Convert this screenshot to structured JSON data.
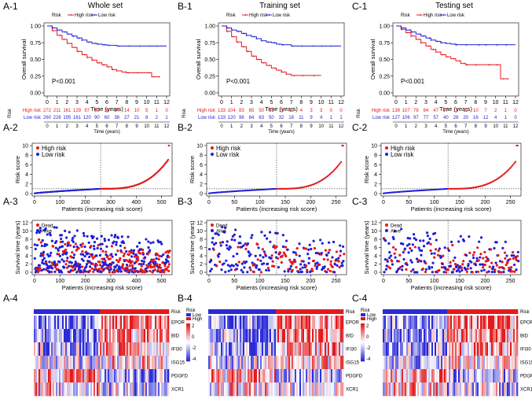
{
  "panel_labels": {
    "km": [
      "A-1",
      "B-1",
      "C-1"
    ],
    "riskscore": [
      "A-2",
      "B-2",
      "C-2"
    ],
    "survtime": [
      "A-3",
      "B-3",
      "C-3"
    ],
    "heatmap": [
      "A-4",
      "B-4",
      "C-4"
    ]
  },
  "column_titles": [
    "Whole set",
    "Training set",
    "Testing set"
  ],
  "colors": {
    "high": "#e41a1c",
    "low": "#1f1fd6",
    "heat_high": "#e41a1c",
    "heat_low": "#2a2ad8"
  },
  "chart_data": [
    {
      "type": "line",
      "panel": "A-1",
      "legend_title": "Risk",
      "legend": [
        "High risk",
        "Low risk"
      ],
      "xlabel": "Time (years)",
      "ylabel": "Overall survival",
      "xlim": [
        0,
        12
      ],
      "ylim": [
        0,
        1
      ],
      "xticks": [
        "0",
        "1",
        "2",
        "3",
        "4",
        "5",
        "6",
        "7",
        "8",
        "9",
        "10",
        "11",
        "12"
      ],
      "yticks": [
        "0.00",
        "0.25",
        "0.50",
        "0.75",
        "1.00"
      ],
      "annotation": "P<0.001",
      "series": [
        {
          "name": "High risk",
          "x": [
            0,
            0.5,
            1,
            1.5,
            2,
            2.5,
            3,
            3.5,
            4,
            4.5,
            5,
            5.5,
            6,
            6.5,
            7,
            7.5,
            8,
            9,
            10,
            10.5,
            11,
            11.3
          ],
          "y": [
            1.0,
            0.93,
            0.86,
            0.8,
            0.74,
            0.68,
            0.62,
            0.57,
            0.53,
            0.49,
            0.45,
            0.42,
            0.39,
            0.35,
            0.33,
            0.31,
            0.3,
            0.3,
            0.3,
            0.24,
            0.24,
            0.24
          ]
        },
        {
          "name": "Low risk",
          "x": [
            0,
            0.5,
            1,
            1.5,
            2,
            2.5,
            3,
            3.5,
            4,
            4.5,
            5,
            5.5,
            6,
            7,
            8,
            9,
            10,
            11,
            12
          ],
          "y": [
            1.0,
            0.97,
            0.94,
            0.91,
            0.88,
            0.85,
            0.82,
            0.79,
            0.76,
            0.74,
            0.73,
            0.72,
            0.71,
            0.7,
            0.7,
            0.7,
            0.7,
            0.7,
            0.7
          ]
        }
      ],
      "risk_table": {
        "title": "Risk",
        "times": [
          "0",
          "1",
          "2",
          "3",
          "4",
          "5",
          "6",
          "7",
          "8",
          "9",
          "10",
          "11",
          "12"
        ],
        "xlabel": "Time (years)",
        "rows": [
          {
            "name": "High risk",
            "values": [
              "272",
              "211",
              "161",
              "129",
              "97",
              "59",
              "38",
              "24",
              "14",
              "10",
              "5",
              "1",
              "0"
            ]
          },
          {
            "name": "Low risk",
            "values": [
              "260",
              "226",
              "195",
              "161",
              "120",
              "90",
              "60",
              "38",
              "27",
              "21",
              "8",
              "2",
              "1"
            ]
          }
        ]
      }
    },
    {
      "type": "line",
      "panel": "B-1",
      "legend_title": "Risk",
      "legend": [
        "High risk",
        "Low risk"
      ],
      "xlabel": "Time (years)",
      "ylabel": "Overall survival",
      "xlim": [
        0,
        12
      ],
      "ylim": [
        0,
        1
      ],
      "xticks": [
        "0",
        "1",
        "2",
        "3",
        "4",
        "5",
        "6",
        "7",
        "8",
        "9",
        "10",
        "11",
        "12"
      ],
      "yticks": [
        "0.00",
        "0.25",
        "0.50",
        "0.75",
        "1.00"
      ],
      "annotation": "P<0.001",
      "series": [
        {
          "name": "High risk",
          "x": [
            0,
            0.5,
            1,
            1.5,
            2,
            2.5,
            3,
            3.5,
            4,
            4.5,
            5,
            5.5,
            6,
            6.5,
            7,
            8,
            9,
            10
          ],
          "y": [
            1.0,
            0.92,
            0.84,
            0.76,
            0.69,
            0.62,
            0.55,
            0.5,
            0.45,
            0.41,
            0.37,
            0.34,
            0.31,
            0.28,
            0.26,
            0.26,
            0.26,
            0.26
          ]
        },
        {
          "name": "Low risk",
          "x": [
            0,
            0.5,
            1,
            1.5,
            2,
            2.5,
            3,
            3.5,
            4,
            4.5,
            5,
            5.5,
            6,
            7,
            8,
            9,
            10,
            11,
            12
          ],
          "y": [
            1.0,
            0.97,
            0.94,
            0.92,
            0.89,
            0.86,
            0.84,
            0.81,
            0.78,
            0.76,
            0.75,
            0.73,
            0.72,
            0.7,
            0.7,
            0.7,
            0.7,
            0.7,
            0.7
          ]
        }
      ],
      "risk_table": {
        "title": "Risk",
        "times": [
          "0",
          "1",
          "2",
          "3",
          "4",
          "5",
          "6",
          "7",
          "8",
          "9",
          "10",
          "11",
          "12"
        ],
        "xlabel": "Time (years)",
        "rows": [
          {
            "name": "High risk",
            "values": [
              "133",
              "104",
              "83",
              "65",
              "50",
              "32",
              "19",
              "12",
              "4",
              "3",
              "3",
              "0",
              "0"
            ]
          },
          {
            "name": "Low risk",
            "values": [
              "133",
              "120",
              "98",
              "84",
              "63",
              "50",
              "32",
              "18",
              "11",
              "9",
              "4",
              "1",
              "1"
            ]
          }
        ]
      }
    },
    {
      "type": "line",
      "panel": "C-1",
      "legend_title": "Risk",
      "legend": [
        "High risk",
        "Low risk"
      ],
      "xlabel": "Time (years)",
      "ylabel": "Overall survival",
      "xlim": [
        0,
        12
      ],
      "ylim": [
        0,
        1
      ],
      "xticks": [
        "0",
        "1",
        "2",
        "3",
        "4",
        "5",
        "6",
        "7",
        "8",
        "9",
        "10",
        "11",
        "12"
      ],
      "yticks": [
        "0.00",
        "0.25",
        "0.50",
        "0.75",
        "1.00"
      ],
      "annotation": "P<0.001",
      "series": [
        {
          "name": "High risk",
          "x": [
            0,
            0.5,
            1,
            1.5,
            2,
            2.5,
            3,
            3.5,
            4,
            4.5,
            5,
            5.5,
            6,
            6.5,
            7,
            8,
            9,
            10,
            10.5,
            11,
            11.3
          ],
          "y": [
            1.0,
            0.95,
            0.9,
            0.85,
            0.8,
            0.75,
            0.7,
            0.65,
            0.61,
            0.57,
            0.54,
            0.51,
            0.48,
            0.44,
            0.42,
            0.42,
            0.42,
            0.42,
            0.21,
            0.21,
            0.21
          ]
        },
        {
          "name": "Low risk",
          "x": [
            0,
            0.5,
            1,
            1.5,
            2,
            2.5,
            3,
            3.5,
            4,
            4.5,
            5,
            5.5,
            6,
            7,
            8,
            9,
            10,
            11,
            12
          ],
          "y": [
            1.0,
            0.97,
            0.94,
            0.91,
            0.88,
            0.85,
            0.82,
            0.79,
            0.77,
            0.75,
            0.74,
            0.73,
            0.72,
            0.72,
            0.72,
            0.72,
            0.72,
            0.72,
            0.72
          ]
        }
      ],
      "risk_table": {
        "title": "Risk",
        "times": [
          "0",
          "1",
          "2",
          "3",
          "4",
          "5",
          "6",
          "7",
          "8",
          "9",
          "10",
          "11",
          "12"
        ],
        "xlabel": "Time (years)",
        "rows": [
          {
            "name": "High risk",
            "values": [
              "139",
              "107",
              "78",
              "64",
              "47",
              "27",
              "19",
              "12",
              "10",
              "7",
              "2",
              "1",
              "0"
            ]
          },
          {
            "name": "Low risk",
            "values": [
              "127",
              "106",
              "97",
              "77",
              "57",
              "40",
              "28",
              "20",
              "16",
              "12",
              "4",
              "1",
              "0"
            ]
          }
        ]
      }
    },
    {
      "type": "scatter",
      "panel": "A-2",
      "n": 532,
      "cutoff_index": 260,
      "legend": [
        "High risk",
        "Low risk"
      ],
      "xlabel": "Patients (increasing risk score)",
      "ylabel": "Risk score",
      "xlim": [
        0,
        532
      ],
      "ylim": [
        0,
        10
      ],
      "xticks": [
        "0",
        "100",
        "200",
        "300",
        "400",
        "500"
      ],
      "yticks": [
        "0",
        "2",
        "4",
        "6",
        "8",
        "10"
      ],
      "score_min": 0.05,
      "score_median": 1.0,
      "score_max": 10.0
    },
    {
      "type": "scatter",
      "panel": "B-2",
      "n": 266,
      "cutoff_index": 133,
      "legend": [
        "High risk",
        "Low risk"
      ],
      "xlabel": "Patients (increasing risk score)",
      "ylabel": "Risk score",
      "xlim": [
        0,
        266
      ],
      "ylim": [
        0,
        10
      ],
      "xticks": [
        "0",
        "50",
        "100",
        "150",
        "200",
        "250"
      ],
      "yticks": [
        "0",
        "2",
        "4",
        "6",
        "8",
        "10"
      ],
      "score_min": 0.05,
      "score_median": 1.0,
      "score_max": 10.0
    },
    {
      "type": "scatter",
      "panel": "C-2",
      "n": 266,
      "cutoff_index": 127,
      "legend": [
        "High risk",
        "Low risk"
      ],
      "xlabel": "Patients (increasing risk score)",
      "ylabel": "Risk score",
      "xlim": [
        0,
        266
      ],
      "ylim": [
        0,
        10
      ],
      "xticks": [
        "0",
        "50",
        "100",
        "150",
        "200",
        "250"
      ],
      "yticks": [
        "0",
        "2",
        "4",
        "6",
        "8",
        "10"
      ],
      "score_min": 0.05,
      "score_median": 1.0,
      "score_max": 10.0
    },
    {
      "type": "scatter",
      "panel": "A-3",
      "n": 532,
      "cutoff_index": 260,
      "legend": [
        "Dead",
        "Alive"
      ],
      "xlabel": "Patients (increasing risk score)",
      "ylabel": "Survival time (years)",
      "xlim": [
        0,
        532
      ],
      "ylim": [
        0,
        12
      ],
      "xticks": [
        "0",
        "100",
        "200",
        "300",
        "400",
        "500"
      ],
      "yticks": [
        "0",
        "2",
        "4",
        "6",
        "8",
        "10",
        "12"
      ]
    },
    {
      "type": "scatter",
      "panel": "B-3",
      "n": 266,
      "cutoff_index": 133,
      "legend": [
        "Dead",
        "Alive"
      ],
      "xlabel": "Patients (increasing risk score)",
      "ylabel": "Survival time (years)",
      "xlim": [
        0,
        266
      ],
      "ylim": [
        0,
        12
      ],
      "xticks": [
        "0",
        "50",
        "100",
        "150",
        "200",
        "250"
      ],
      "yticks": [
        "0",
        "2",
        "4",
        "6",
        "8",
        "10",
        "12"
      ]
    },
    {
      "type": "scatter",
      "panel": "C-3",
      "n": 266,
      "cutoff_index": 127,
      "legend": [
        "Dead",
        "Alive"
      ],
      "xlabel": "Patients (increasing risk score)",
      "ylabel": "Survival time (years)",
      "xlim": [
        0,
        266
      ],
      "ylim": [
        0,
        12
      ],
      "xticks": [
        "0",
        "50",
        "100",
        "150",
        "200",
        "250"
      ],
      "yticks": [
        "0",
        "2",
        "4",
        "6",
        "8",
        "10",
        "12"
      ]
    },
    {
      "type": "heatmap",
      "panel": "A-4",
      "rows": [
        "EPOR",
        "BID",
        "IFI30",
        "ISG15",
        "PDGFD",
        "XCR1"
      ],
      "annotation_row": "Risk",
      "legend_title": "Risk",
      "legend": [
        "Low",
        "High"
      ],
      "scale_ticks": [
        "2",
        "0",
        "-2",
        "-4"
      ],
      "low_fraction": 0.49
    },
    {
      "type": "heatmap",
      "panel": "B-4",
      "rows": [
        "EPOR",
        "BID",
        "IFI30",
        "ISG15",
        "PDGFD",
        "XCR1"
      ],
      "annotation_row": "Risk",
      "legend_title": "Risk",
      "legend": [
        "Low",
        "High"
      ],
      "scale_ticks": [
        "2",
        "0",
        "-2",
        "-4"
      ],
      "low_fraction": 0.5
    },
    {
      "type": "heatmap",
      "panel": "C-4",
      "rows": [
        "EPOR",
        "BID",
        "IFI30",
        "ISG15",
        "PDGFD",
        "XCR1"
      ],
      "annotation_row": "Risk",
      "legend_title": "Risk",
      "legend": [
        "Low",
        "High"
      ],
      "scale_ticks": [
        "3",
        "2",
        "1",
        "0",
        "-1",
        "-2",
        "-3"
      ],
      "low_fraction": 0.48
    }
  ]
}
